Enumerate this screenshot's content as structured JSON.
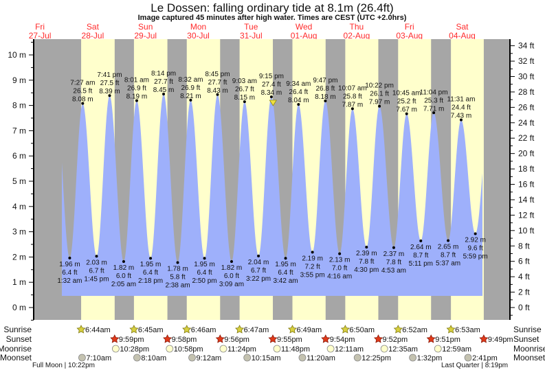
{
  "title": "Le Dossen: falling  ordinary tide at 8.1m (26.4ft)",
  "subtitle": "Image captured 45 minutes after high water. Times are CEST (UTC +2.0hrs)",
  "colors": {
    "night": "#a6a6a6",
    "day": "#ffffcc",
    "water": "#9eb0fb",
    "day_label": "#ff2a2a",
    "sunrise": "#d8d040",
    "sunset": "#e03a1a",
    "moonrise": "#ffffcc",
    "moonset": "#c4c2b0"
  },
  "chart_data": {
    "type": "area",
    "title": "Le Dossen: falling  ordinary tide at 8.1m (26.4ft)",
    "ylabel_left": "m",
    "ylabel_right": "ft",
    "ylim_m": [
      -0.5,
      10.6
    ],
    "left_ticks": [
      "0 m",
      "1 m",
      "2 m",
      "3 m",
      "4 m",
      "5 m",
      "6 m",
      "7 m",
      "8 m",
      "9 m",
      "10 m"
    ],
    "right_ticks": [
      "0 ft",
      "2 ft",
      "4 ft",
      "6 ft",
      "8 ft",
      "10 ft",
      "12 ft",
      "14 ft",
      "16 ft",
      "18 ft",
      "20 ft",
      "22 ft",
      "24 ft",
      "26 ft",
      "28 ft",
      "30 ft",
      "32 ft",
      "34 ft"
    ],
    "days": [
      {
        "dow": "Fri",
        "date": "27-Jul"
      },
      {
        "dow": "Sat",
        "date": "28-Jul"
      },
      {
        "dow": "Sun",
        "date": "29-Jul"
      },
      {
        "dow": "Mon",
        "date": "30-Jul"
      },
      {
        "dow": "Tue",
        "date": "31-Jul"
      },
      {
        "dow": "Wed",
        "date": "01-Aug"
      },
      {
        "dow": "Thu",
        "date": "02-Aug"
      },
      {
        "dow": "Fri",
        "date": "03-Aug"
      },
      {
        "dow": "Sat",
        "date": "04-Aug"
      }
    ],
    "extremes": [
      {
        "type": "low",
        "day": 1,
        "time": "1:32 am",
        "m": "1.96 m",
        "ft": "6.4 ft",
        "value": 1.96
      },
      {
        "type": "high",
        "day": 1,
        "time": "7:27 am",
        "m": "8.08 m",
        "ft": "26.5 ft",
        "value": 8.08
      },
      {
        "type": "low",
        "day": 1,
        "time": "1:45 pm",
        "m": "2.03 m",
        "ft": "6.7 ft",
        "value": 2.03
      },
      {
        "type": "high",
        "day": 1,
        "time": "7:41 pm",
        "m": "8.39 m",
        "ft": "27.5 ft",
        "value": 8.39
      },
      {
        "type": "low",
        "day": 2,
        "time": "2:05 am",
        "m": "1.82 m",
        "ft": "6.0 ft",
        "value": 1.82
      },
      {
        "type": "high",
        "day": 2,
        "time": "8:01 am",
        "m": "8.19 m",
        "ft": "26.9 ft",
        "value": 8.19
      },
      {
        "type": "low",
        "day": 2,
        "time": "2:18 pm",
        "m": "1.95 m",
        "ft": "6.4 ft",
        "value": 1.95
      },
      {
        "type": "high",
        "day": 2,
        "time": "8:14 pm",
        "m": "8.45 m",
        "ft": "27.7 ft",
        "value": 8.45
      },
      {
        "type": "low",
        "day": 3,
        "time": "2:38 am",
        "m": "1.78 m",
        "ft": "5.8 ft",
        "value": 1.78
      },
      {
        "type": "high",
        "day": 3,
        "time": "8:32 am",
        "m": "8.21 m",
        "ft": "26.9 ft",
        "value": 8.21
      },
      {
        "type": "low",
        "day": 3,
        "time": "2:50 pm",
        "m": "1.95 m",
        "ft": "6.4 ft",
        "value": 1.95
      },
      {
        "type": "high",
        "day": 3,
        "time": "8:45 pm",
        "m": "8.43 m",
        "ft": "27.7 ft",
        "value": 8.43
      },
      {
        "type": "low",
        "day": 4,
        "time": "3:09 am",
        "m": "1.82 m",
        "ft": "6.0 ft",
        "value": 1.82
      },
      {
        "type": "high",
        "day": 4,
        "time": "9:03 am",
        "m": "8.15 m",
        "ft": "26.7 ft",
        "value": 8.15
      },
      {
        "type": "low",
        "day": 4,
        "time": "3:22 pm",
        "m": "2.04 m",
        "ft": "6.7 ft",
        "value": 2.04
      },
      {
        "type": "high",
        "day": 4,
        "time": "9:15 pm",
        "m": "8.34 m",
        "ft": "27.4 ft",
        "value": 8.34
      },
      {
        "type": "low",
        "day": 5,
        "time": "3:42 am",
        "m": "1.95 m",
        "ft": "6.4 ft",
        "value": 1.95
      },
      {
        "type": "high",
        "day": 5,
        "time": "9:34 am",
        "m": "8.04 m",
        "ft": "26.4 ft",
        "value": 8.04
      },
      {
        "type": "low",
        "day": 5,
        "time": "3:55 pm",
        "m": "2.19 m",
        "ft": "7.2 ft",
        "value": 2.19
      },
      {
        "type": "high",
        "day": 5,
        "time": "9:47 pm",
        "m": "8.18 m",
        "ft": "26.8 ft",
        "value": 8.18
      },
      {
        "type": "low",
        "day": 6,
        "time": "4:16 am",
        "m": "2.13 m",
        "ft": "7.0 ft",
        "value": 2.13
      },
      {
        "type": "high",
        "day": 6,
        "time": "10:07 am",
        "m": "7.87 m",
        "ft": "25.8 ft",
        "value": 7.87
      },
      {
        "type": "low",
        "day": 6,
        "time": "4:30 pm",
        "m": "2.39 m",
        "ft": "7.8 ft",
        "value": 2.39
      },
      {
        "type": "high",
        "day": 6,
        "time": "10:22 pm",
        "m": "7.97 m",
        "ft": "26.1 ft",
        "value": 7.97
      },
      {
        "type": "low",
        "day": 7,
        "time": "4:53 am",
        "m": "2.37 m",
        "ft": "7.8 ft",
        "value": 2.37
      },
      {
        "type": "high",
        "day": 7,
        "time": "10:45 am",
        "m": "7.67 m",
        "ft": "25.2 ft",
        "value": 7.67
      },
      {
        "type": "low",
        "day": 7,
        "time": "5:11 pm",
        "m": "2.64 m",
        "ft": "8.7 ft",
        "value": 2.64
      },
      {
        "type": "high",
        "day": 7,
        "time": "11:04 pm",
        "m": "7.71 m",
        "ft": "25.3 ft",
        "value": 7.71
      },
      {
        "type": "low",
        "day": 8,
        "time": "5:37 am",
        "m": "2.65 m",
        "ft": "8.7 ft",
        "value": 2.65
      },
      {
        "type": "high",
        "day": 8,
        "time": "11:31 am",
        "m": "7.43 m",
        "ft": "24.4 ft",
        "value": 7.43
      },
      {
        "type": "low",
        "day": 8,
        "time": "5:59 pm",
        "m": "2.92 m",
        "ft": "9.6 ft",
        "value": 2.92
      }
    ],
    "current": {
      "day": 4,
      "time": "10:00 pm",
      "value": 8.1
    }
  },
  "rows": {
    "sunrise": "Sunrise",
    "sunset": "Sunset",
    "moonrise": "Moonrise",
    "moonset": "Moonset"
  },
  "sunrise": [
    {
      "day": 1,
      "time": "6:44am"
    },
    {
      "day": 2,
      "time": "6:45am"
    },
    {
      "day": 3,
      "time": "6:46am"
    },
    {
      "day": 4,
      "time": "6:47am"
    },
    {
      "day": 5,
      "time": "6:49am"
    },
    {
      "day": 6,
      "time": "6:50am"
    },
    {
      "day": 7,
      "time": "6:52am"
    },
    {
      "day": 8,
      "time": "6:53am"
    }
  ],
  "sunset": [
    {
      "day": 1,
      "time": "9:59pm"
    },
    {
      "day": 2,
      "time": "9:58pm"
    },
    {
      "day": 3,
      "time": "9:56pm"
    },
    {
      "day": 4,
      "time": "9:55pm"
    },
    {
      "day": 5,
      "time": "9:54pm"
    },
    {
      "day": 6,
      "time": "9:52pm"
    },
    {
      "day": 7,
      "time": "9:51pm"
    },
    {
      "day": 8,
      "time": "9:49pm"
    }
  ],
  "moonrise": [
    {
      "day": 1,
      "time": "10:28pm"
    },
    {
      "day": 2,
      "time": "10:58pm"
    },
    {
      "day": 3,
      "time": "11:24pm"
    },
    {
      "day": 4,
      "time": "11:48pm"
    },
    {
      "day": 6,
      "time": "12:11am"
    },
    {
      "day": 7,
      "time": "12:35am"
    },
    {
      "day": 8,
      "time": "12:59am"
    }
  ],
  "moonset": [
    {
      "day": 1,
      "time": "7:10am"
    },
    {
      "day": 2,
      "time": "8:10am"
    },
    {
      "day": 3,
      "time": "9:12am"
    },
    {
      "day": 4,
      "time": "10:15am"
    },
    {
      "day": 5,
      "time": "11:20am"
    },
    {
      "day": 6,
      "time": "12:25pm"
    },
    {
      "day": 7,
      "time": "1:32pm"
    },
    {
      "day": 8,
      "time": "2:41pm"
    }
  ],
  "phases": [
    {
      "label": "Full Moon | 10:22pm"
    },
    {
      "label": "Last Quarter | 8:19pm"
    }
  ]
}
